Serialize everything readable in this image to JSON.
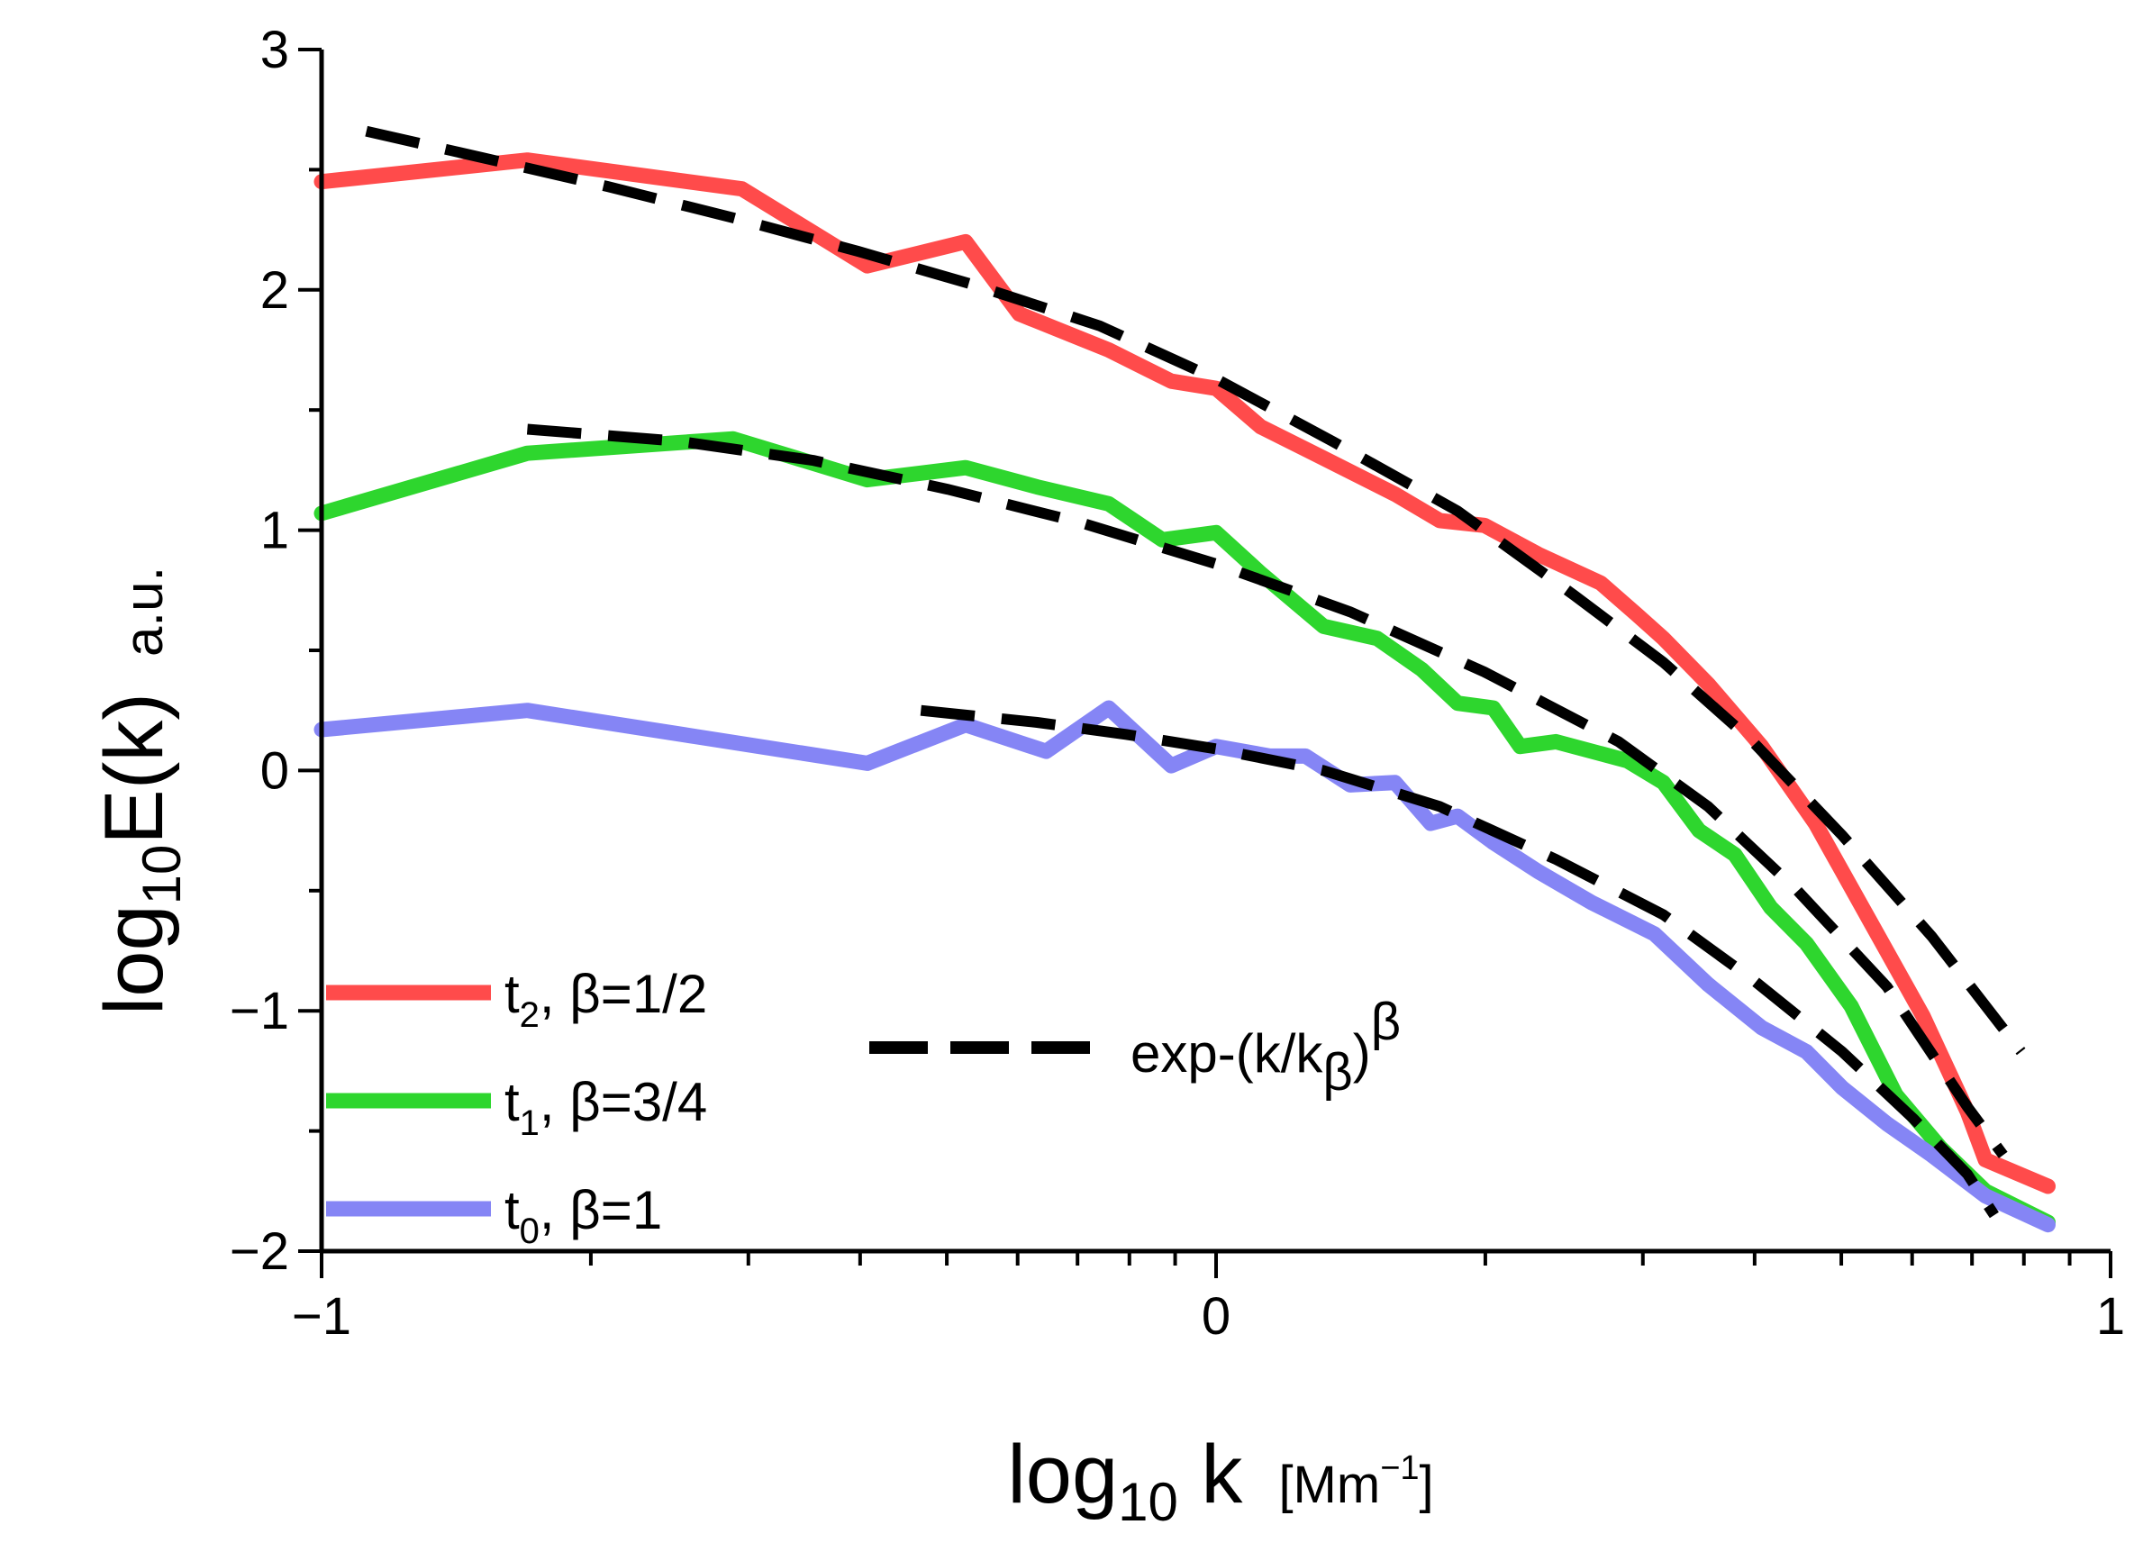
{
  "chart_data": {
    "type": "line",
    "title": "",
    "xlabel": {
      "base": "log",
      "sub": "10",
      "var": " k",
      "unit": "[Mm",
      "unit_sup": "−1",
      "unit_end": "]"
    },
    "ylabel": {
      "base": "log",
      "sub": "10",
      "rest": "E(k)",
      "unit": "a.u."
    },
    "xlim": [
      -1,
      1
    ],
    "ylim": [
      -2,
      3
    ],
    "x_ticks": [
      {
        "value": -1,
        "label": "−1"
      },
      {
        "value": 0,
        "label": "0"
      },
      {
        "value": 1,
        "label": "1"
      }
    ],
    "y_ticks": [
      {
        "value": -2,
        "label": "−2"
      },
      {
        "value": -1,
        "label": "−1"
      },
      {
        "value": 0,
        "label": "0"
      },
      {
        "value": 1,
        "label": "1"
      },
      {
        "value": 2,
        "label": "2"
      },
      {
        "value": 3,
        "label": "3"
      }
    ],
    "series": [
      {
        "name": "t2, β=1/2",
        "label": {
          "t": "t",
          "sub": "2",
          "rest": ", β=1/2"
        },
        "color": "#ff4b4b",
        "x": [
          -1.0,
          -0.77,
          -0.53,
          -0.39,
          -0.28,
          -0.22,
          -0.12,
          -0.05,
          0.0,
          0.05,
          0.12,
          0.2,
          0.25,
          0.3,
          0.36,
          0.43,
          0.47,
          0.5,
          0.55,
          0.61,
          0.67,
          0.73,
          0.79,
          0.84,
          0.86,
          0.93
        ],
        "y": [
          2.45,
          2.54,
          2.42,
          2.1,
          2.2,
          1.9,
          1.75,
          1.62,
          1.59,
          1.43,
          1.3,
          1.15,
          1.04,
          1.02,
          0.9,
          0.78,
          0.65,
          0.55,
          0.36,
          0.1,
          -0.22,
          -0.62,
          -1.02,
          -1.42,
          -1.62,
          -1.73
        ]
      },
      {
        "name": "t1, β=3/4",
        "label": {
          "t": "t",
          "sub": "1",
          "rest": ", β=3/4"
        },
        "color": "#2ed62e",
        "x": [
          -1.0,
          -0.77,
          -0.54,
          -0.39,
          -0.28,
          -0.2,
          -0.12,
          -0.06,
          0.0,
          0.05,
          0.12,
          0.18,
          0.23,
          0.27,
          0.31,
          0.34,
          0.38,
          0.46,
          0.5,
          0.54,
          0.58,
          0.62,
          0.66,
          0.71,
          0.76,
          0.81,
          0.86,
          0.93
        ],
        "y": [
          1.07,
          1.32,
          1.38,
          1.21,
          1.26,
          1.18,
          1.11,
          0.96,
          0.99,
          0.82,
          0.6,
          0.55,
          0.42,
          0.28,
          0.26,
          0.1,
          0.12,
          0.04,
          -0.05,
          -0.25,
          -0.35,
          -0.57,
          -0.72,
          -0.98,
          -1.35,
          -1.57,
          -1.75,
          -1.88
        ]
      },
      {
        "name": "t0, β=1",
        "label": {
          "t": "t",
          "sub": "0",
          "rest": ", β=1"
        },
        "color": "#8585f5",
        "x": [
          -1.0,
          -0.77,
          -0.58,
          -0.39,
          -0.28,
          -0.19,
          -0.12,
          -0.05,
          0.0,
          0.06,
          0.1,
          0.15,
          0.2,
          0.24,
          0.27,
          0.31,
          0.36,
          0.42,
          0.49,
          0.55,
          0.61,
          0.66,
          0.7,
          0.75,
          0.8,
          0.86,
          0.93
        ],
        "y": [
          0.17,
          0.25,
          0.14,
          0.03,
          0.19,
          0.08,
          0.26,
          0.02,
          0.1,
          0.06,
          0.06,
          -0.06,
          -0.05,
          -0.22,
          -0.19,
          -0.3,
          -0.42,
          -0.55,
          -0.68,
          -0.89,
          -1.07,
          -1.17,
          -1.32,
          -1.47,
          -1.6,
          -1.77,
          -1.89
        ]
      }
    ],
    "fits": [
      {
        "name": "fit t2",
        "x": [
          -0.95,
          -0.82,
          -0.68,
          -0.54,
          -0.4,
          -0.27,
          -0.13,
          0.0,
          0.13,
          0.27,
          0.4,
          0.5,
          0.6,
          0.7,
          0.8,
          0.9
        ],
        "y": [
          2.66,
          2.55,
          2.43,
          2.3,
          2.16,
          2.02,
          1.85,
          1.63,
          1.37,
          1.08,
          0.73,
          0.45,
          0.12,
          -0.27,
          -0.69,
          -1.17
        ]
      },
      {
        "name": "fit t1",
        "x": [
          -0.77,
          -0.6,
          -0.45,
          -0.3,
          -0.15,
          0.0,
          0.15,
          0.3,
          0.45,
          0.55,
          0.65,
          0.75,
          0.84,
          0.88
        ],
        "y": [
          1.42,
          1.37,
          1.29,
          1.17,
          1.03,
          0.86,
          0.66,
          0.41,
          0.12,
          -0.15,
          -0.5,
          -0.9,
          -1.4,
          -1.6
        ]
      },
      {
        "name": "fit t0",
        "x": [
          -0.33,
          -0.2,
          -0.1,
          0.0,
          0.12,
          0.25,
          0.38,
          0.5,
          0.6,
          0.7,
          0.78,
          0.84,
          0.87
        ],
        "y": [
          0.25,
          0.2,
          0.15,
          0.09,
          0.0,
          -0.15,
          -0.37,
          -0.6,
          -0.87,
          -1.17,
          -1.45,
          -1.68,
          -1.85
        ]
      }
    ],
    "fit_label": {
      "text": "exp-(k/k",
      "sub": "β",
      "close": ")",
      "sup": "β"
    },
    "legend_position": "bottom-left"
  }
}
